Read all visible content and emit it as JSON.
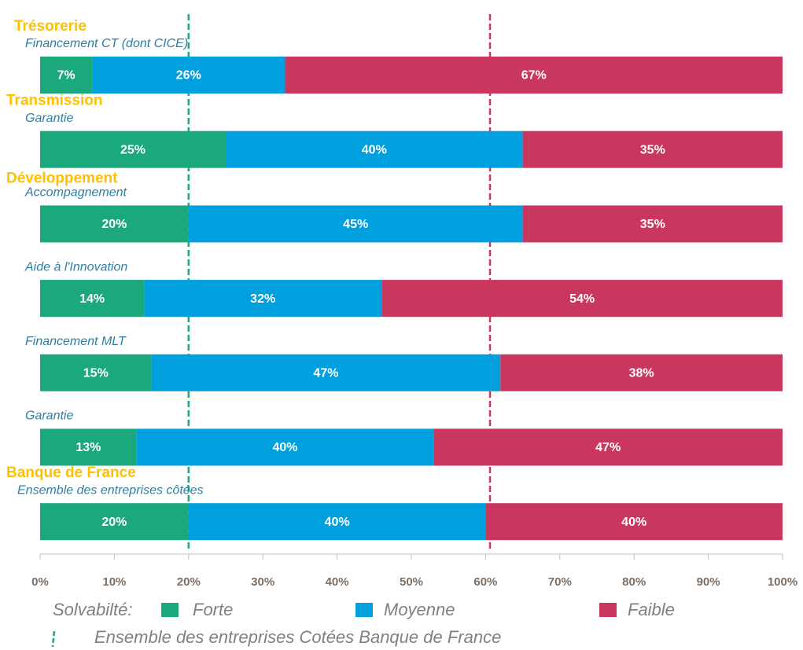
{
  "chart_data": {
    "type": "stacked-bar-horizontal",
    "categories": [
      "Financement CT (dont CICE)",
      "Garantie",
      "Accompagnement",
      "Aide à l'Innovation",
      "Financement MLT",
      "Garantie",
      "Ensemble des entreprises côtées"
    ],
    "group_labels": [
      "Trésorerie",
      "Transmission",
      "Développement",
      null,
      null,
      null,
      "Banque de France"
    ],
    "series": [
      {
        "name": "Forte",
        "color": "#1aa87c",
        "values": [
          7,
          25,
          20,
          14,
          15,
          13,
          20
        ],
        "value_labels": [
          "7%",
          "25%",
          "20%",
          "14%",
          "15%",
          "13%",
          "20%"
        ]
      },
      {
        "name": "Moyenne",
        "color": "#00a0df",
        "values": [
          26,
          40,
          45,
          32,
          47,
          40,
          40
        ],
        "value_labels": [
          "26%",
          "40%",
          "45%",
          "32%",
          "47%",
          "40%",
          "40%"
        ]
      },
      {
        "name": "Faible",
        "color": "#c9375f",
        "values": [
          67,
          35,
          35,
          54,
          38,
          47,
          40
        ],
        "value_labels": [
          "67%",
          "35%",
          "35%",
          "54%",
          "38%",
          "47%",
          "40%"
        ]
      }
    ],
    "xlim": [
      0,
      100
    ],
    "xticks": [
      {
        "value": 0,
        "label": "0%"
      },
      {
        "value": 10,
        "label": "10%"
      },
      {
        "value": 20,
        "label": "20%"
      },
      {
        "value": 30,
        "label": "30%"
      },
      {
        "value": 40,
        "label": "40%"
      },
      {
        "value": 50,
        "label": "50%"
      },
      {
        "value": 60,
        "label": "60%"
      },
      {
        "value": 70,
        "label": "70%"
      },
      {
        "value": 80,
        "label": "80%"
      },
      {
        "value": 90,
        "label": "90%"
      },
      {
        "value": 100,
        "label": "100%"
      }
    ],
    "legend_title": "Solvabilté:",
    "reference_lines": [
      {
        "value": 20,
        "color": "#1aa87c"
      },
      {
        "value": 60.6,
        "color": "#c9375f"
      }
    ],
    "reference_legend": "Ensemble des entreprises Cotées Banque de France"
  }
}
